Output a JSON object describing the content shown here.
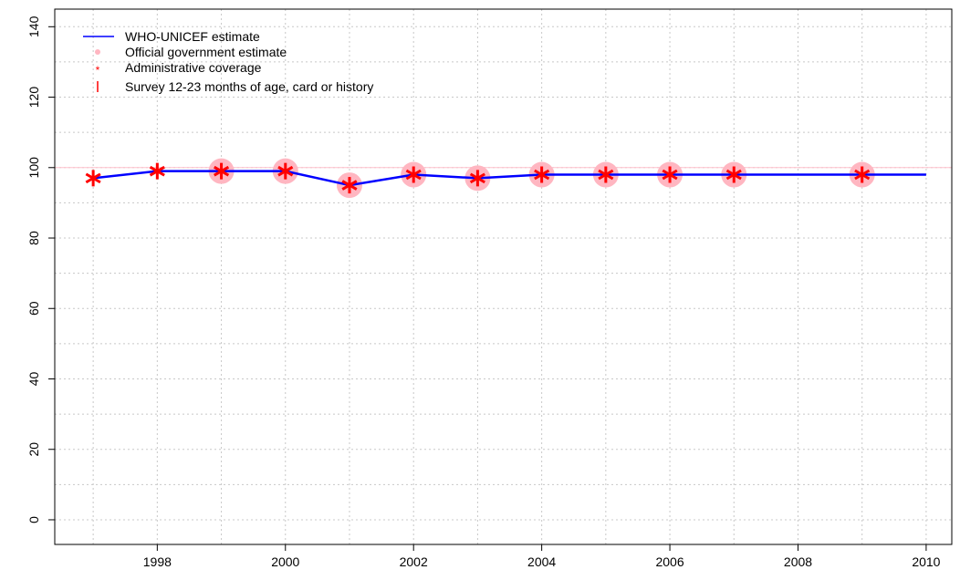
{
  "chart_data": {
    "type": "line",
    "title": "",
    "xlabel": "",
    "ylabel": "",
    "xlim": [
      1996.4,
      2010.4
    ],
    "ylim": [
      -7,
      145
    ],
    "x_ticks": [
      1998,
      2000,
      2002,
      2004,
      2006,
      2008,
      2010
    ],
    "x_tick_labels": [
      "1998",
      "2000",
      "2002",
      "2004",
      "2006",
      "2008",
      "2010"
    ],
    "y_ticks": [
      0,
      20,
      40,
      60,
      80,
      100,
      120,
      140
    ],
    "y_tick_labels": [
      "0",
      "20",
      "40",
      "60",
      "80",
      "100",
      "120",
      "140"
    ],
    "grid": true,
    "reference_line": 100,
    "legend_position": "top-left",
    "legend": [
      {
        "label": "WHO-UNICEF estimate",
        "marker": "line",
        "color": "#0000ff"
      },
      {
        "label": "Official government estimate",
        "marker": "dot",
        "color": "#ffb6c1"
      },
      {
        "label": "Administrative coverage",
        "marker": "asterisk",
        "color": "#ff0000"
      },
      {
        "label": "Survey 12-23 months of age, card or history",
        "marker": "bar",
        "color": "#ff0000"
      }
    ],
    "series": [
      {
        "name": "WHO-UNICEF estimate",
        "color": "#0000ff",
        "x": [
          1997,
          1998,
          1999,
          2000,
          2001,
          2002,
          2003,
          2004,
          2005,
          2006,
          2007,
          2008,
          2009,
          2010
        ],
        "y": [
          97,
          99,
          99,
          99,
          95,
          98,
          97,
          98,
          98,
          98,
          98,
          98,
          98,
          98
        ]
      },
      {
        "name": "Official government estimate",
        "color": "#ffb6c1",
        "x": [
          1999,
          2000,
          2001,
          2002,
          2003,
          2004,
          2005,
          2006,
          2007,
          2009
        ],
        "y": [
          99,
          99,
          95,
          98,
          97,
          98,
          98,
          98,
          98,
          98
        ]
      },
      {
        "name": "Administrative coverage",
        "color": "#ff0000",
        "x": [
          1997,
          1998,
          1999,
          2000,
          2001,
          2002,
          2003,
          2004,
          2005,
          2006,
          2007,
          2009
        ],
        "y": [
          97,
          99,
          99,
          99,
          95,
          98,
          97,
          98,
          98,
          98,
          98,
          98
        ]
      }
    ]
  }
}
